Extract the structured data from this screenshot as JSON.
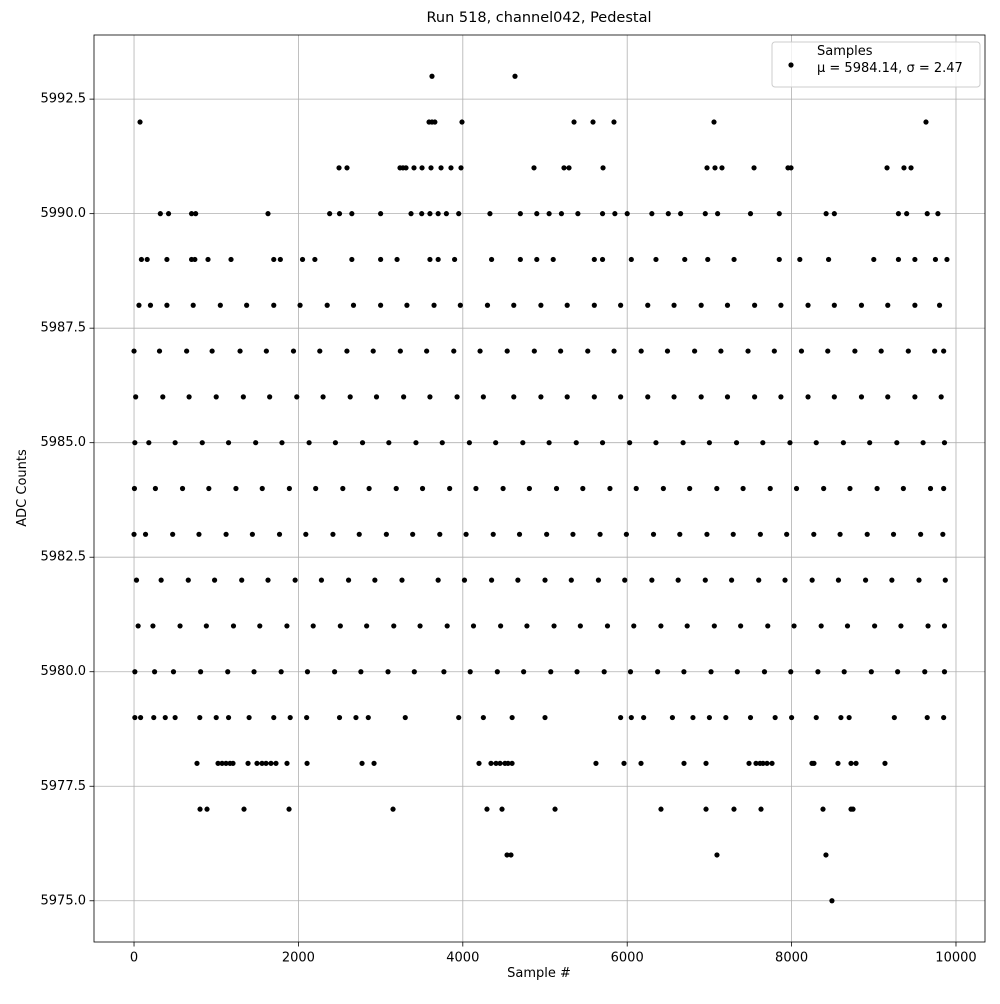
{
  "chart_data": {
    "type": "scatter",
    "title": "Run 518, channel042, Pedestal",
    "xlabel": "Sample #",
    "ylabel": "ADC Counts",
    "xlim": [
      -487,
      10353
    ],
    "ylim": [
      5974.1,
      5993.9
    ],
    "xticks": [
      0,
      2000,
      4000,
      6000,
      8000,
      10000
    ],
    "yticks": [
      {
        "value": 5975,
        "label": "5975.0"
      },
      5977.5,
      {
        "value": 5980,
        "label": "5980.0"
      },
      5982.5,
      {
        "value": 5985,
        "label": "5985.0"
      },
      5987.5,
      {
        "value": 5990,
        "label": "5990.0"
      },
      5992.5
    ],
    "grid": true,
    "legend": "upper right",
    "legend_stats": "μ = 5984.14, σ = 2.47",
    "series": [
      {
        "name": "Samples",
        "color": "#000000",
        "x": [
          3625,
          4635,
          73,
          3589,
          3625,
          3660,
          3990,
          5353,
          5584,
          5839,
          7056,
          9635,
          2494,
          2591,
          3236,
          3272,
          3309,
          3406,
          3504,
          3613,
          3735,
          3856,
          3978,
          4866,
          5231,
          5292,
          5706,
          6971,
          7068,
          7153,
          7543,
          7956,
          7993,
          9161,
          9367,
          9453,
          320,
          420,
          700,
          750,
          1630,
          2380,
          2500,
          2650,
          3000,
          3370,
          3500,
          3600,
          3700,
          3800,
          3950,
          4330,
          4700,
          4900,
          5050,
          5200,
          5400,
          5700,
          5850,
          6000,
          6300,
          6500,
          6650,
          6950,
          7100,
          7500,
          7850,
          8420,
          8520,
          9300,
          9400,
          9650,
          9780,
          90,
          160,
          400,
          700,
          740,
          900,
          1180,
          1700,
          1780,
          2050,
          2200,
          2650,
          3000,
          3200,
          3600,
          3700,
          3900,
          4350,
          4700,
          4900,
          5100,
          5600,
          5700,
          6050,
          6350,
          6700,
          6980,
          7300,
          7850,
          8100,
          8450,
          9000,
          9300,
          9500,
          9750,
          9890,
          60,
          200,
          400,
          720,
          1050,
          1370,
          1700,
          2020,
          2350,
          2670,
          3000,
          3320,
          3650,
          3970,
          4300,
          4620,
          4950,
          5270,
          5600,
          5920,
          6250,
          6570,
          6900,
          7220,
          7550,
          7870,
          8200,
          8520,
          8850,
          9170,
          9500,
          9800,
          0,
          310,
          640,
          950,
          1290,
          1610,
          1940,
          2260,
          2590,
          2910,
          3240,
          3560,
          3890,
          4210,
          4540,
          4870,
          5190,
          5520,
          5840,
          6170,
          6490,
          6820,
          7140,
          7470,
          7790,
          8120,
          8440,
          8770,
          9090,
          9420,
          9740,
          9850,
          20,
          350,
          670,
          1000,
          1330,
          1650,
          1980,
          2300,
          2630,
          2950,
          3280,
          3600,
          3930,
          4250,
          4620,
          4950,
          5270,
          5600,
          5920,
          6250,
          6570,
          6900,
          7220,
          7550,
          7870,
          8200,
          8520,
          8850,
          9170,
          9500,
          9820,
          10,
          180,
          500,
          830,
          1150,
          1480,
          1800,
          2130,
          2450,
          2780,
          3100,
          3430,
          3750,
          4080,
          4400,
          4730,
          5050,
          5380,
          5700,
          6030,
          6350,
          6680,
          7000,
          7330,
          7650,
          7980,
          8300,
          8630,
          8950,
          9280,
          9600,
          9860,
          5,
          260,
          590,
          910,
          1240,
          1560,
          1890,
          2210,
          2540,
          2860,
          3190,
          3510,
          3840,
          4160,
          4490,
          4810,
          5140,
          5460,
          5790,
          6110,
          6440,
          6760,
          7090,
          7410,
          7740,
          8060,
          8390,
          8710,
          9040,
          9360,
          9690,
          9850,
          0,
          140,
          470,
          790,
          1120,
          1440,
          1770,
          2090,
          2420,
          2740,
          3070,
          3390,
          3720,
          4040,
          4370,
          4690,
          5020,
          5340,
          5670,
          5990,
          6320,
          6640,
          6970,
          7290,
          7620,
          7940,
          8270,
          8590,
          8920,
          9240,
          9570,
          9840,
          30,
          330,
          660,
          980,
          1310,
          1630,
          1960,
          2280,
          2610,
          2930,
          3260,
          3700,
          4020,
          4350,
          4670,
          5000,
          5320,
          5650,
          5970,
          6300,
          6620,
          6950,
          7270,
          7600,
          7920,
          8250,
          8570,
          8900,
          9220,
          9550,
          9870,
          50,
          230,
          560,
          880,
          1210,
          1530,
          1860,
          2180,
          2510,
          2830,
          3160,
          3480,
          3810,
          4130,
          4460,
          4780,
          5110,
          5430,
          5760,
          6080,
          6410,
          6730,
          7060,
          7380,
          7710,
          8030,
          8360,
          8680,
          9010,
          9330,
          9660,
          9860,
          10,
          250,
          480,
          810,
          1140,
          1460,
          1790,
          2110,
          2440,
          2760,
          3090,
          3410,
          3770,
          4090,
          4420,
          4740,
          5070,
          5390,
          5720,
          6040,
          6370,
          6690,
          7020,
          7340,
          7670,
          7990,
          8320,
          8640,
          8970,
          9290,
          9620,
          9860,
          10,
          80,
          240,
          380,
          500,
          800,
          1000,
          1150,
          1400,
          1700,
          1900,
          2100,
          2500,
          2700,
          2850,
          3300,
          3950,
          4250,
          4600,
          5000,
          5920,
          6050,
          6200,
          6550,
          6800,
          7000,
          7200,
          7500,
          7800,
          8000,
          8300,
          8600,
          8700,
          9250,
          9650,
          9850,
          766,
          1022,
          1071,
          1119,
          1168,
          1204,
          1387,
          1496,
          1557,
          1606,
          1666,
          1727,
          1861,
          2105,
          2774,
          2920,
          4197,
          4343,
          4404,
          4453,
          4513,
          4550,
          4599,
          5620,
          5961,
          6168,
          6691,
          6959,
          7482,
          7567,
          7616,
          7652,
          7701,
          7762,
          8248,
          8272,
          8564,
          8723,
          8784,
          9136,
          803,
          888,
          1338,
          1886,
          3151,
          4294,
          4477,
          5122,
          6411,
          6959,
          7299,
          7628,
          8382,
          8723,
          8747,
          4538,
          4586,
          7092,
          8418,
          8491
        ],
        "y": [
          5993,
          5993,
          5992,
          5992,
          5992,
          5992,
          5992,
          5992,
          5992,
          5992,
          5992,
          5992,
          5991,
          5991,
          5991,
          5991,
          5991,
          5991,
          5991,
          5991,
          5991,
          5991,
          5991,
          5991,
          5991,
          5991,
          5991,
          5991,
          5991,
          5991,
          5991,
          5991,
          5991,
          5991,
          5991,
          5991,
          5990,
          5990,
          5990,
          5990,
          5990,
          5990,
          5990,
          5990,
          5990,
          5990,
          5990,
          5990,
          5990,
          5990,
          5990,
          5990,
          5990,
          5990,
          5990,
          5990,
          5990,
          5990,
          5990,
          5990,
          5990,
          5990,
          5990,
          5990,
          5990,
          5990,
          5990,
          5990,
          5990,
          5990,
          5990,
          5990,
          5990,
          5989,
          5989,
          5989,
          5989,
          5989,
          5989,
          5989,
          5989,
          5989,
          5989,
          5989,
          5989,
          5989,
          5989,
          5989,
          5989,
          5989,
          5989,
          5989,
          5989,
          5989,
          5989,
          5989,
          5989,
          5989,
          5989,
          5989,
          5989,
          5989,
          5989,
          5989,
          5989,
          5989,
          5989,
          5989,
          5989,
          5988,
          5988,
          5988,
          5988,
          5988,
          5988,
          5988,
          5988,
          5988,
          5988,
          5988,
          5988,
          5988,
          5988,
          5988,
          5988,
          5988,
          5988,
          5988,
          5988,
          5988,
          5988,
          5988,
          5988,
          5988,
          5988,
          5988,
          5988,
          5988,
          5988,
          5988,
          5988,
          5987,
          5987,
          5987,
          5987,
          5987,
          5987,
          5987,
          5987,
          5987,
          5987,
          5987,
          5987,
          5987,
          5987,
          5987,
          5987,
          5987,
          5987,
          5987,
          5987,
          5987,
          5987,
          5987,
          5987,
          5987,
          5987,
          5987,
          5987,
          5987,
          5987,
          5987,
          5987,
          5986,
          5986,
          5986,
          5986,
          5986,
          5986,
          5986,
          5986,
          5986,
          5986,
          5986,
          5986,
          5986,
          5986,
          5986,
          5986,
          5986,
          5986,
          5986,
          5986,
          5986,
          5986,
          5986,
          5986,
          5986,
          5986,
          5986,
          5986,
          5986,
          5986,
          5986,
          5985,
          5985,
          5985,
          5985,
          5985,
          5985,
          5985,
          5985,
          5985,
          5985,
          5985,
          5985,
          5985,
          5985,
          5985,
          5985,
          5985,
          5985,
          5985,
          5985,
          5985,
          5985,
          5985,
          5985,
          5985,
          5985,
          5985,
          5985,
          5985,
          5985,
          5985,
          5985,
          5984,
          5984,
          5984,
          5984,
          5984,
          5984,
          5984,
          5984,
          5984,
          5984,
          5984,
          5984,
          5984,
          5984,
          5984,
          5984,
          5984,
          5984,
          5984,
          5984,
          5984,
          5984,
          5984,
          5984,
          5984,
          5984,
          5984,
          5984,
          5984,
          5984,
          5984,
          5984,
          5983,
          5983,
          5983,
          5983,
          5983,
          5983,
          5983,
          5983,
          5983,
          5983,
          5983,
          5983,
          5983,
          5983,
          5983,
          5983,
          5983,
          5983,
          5983,
          5983,
          5983,
          5983,
          5983,
          5983,
          5983,
          5983,
          5983,
          5983,
          5983,
          5983,
          5983,
          5983,
          5982,
          5982,
          5982,
          5982,
          5982,
          5982,
          5982,
          5982,
          5982,
          5982,
          5982,
          5982,
          5982,
          5982,
          5982,
          5982,
          5982,
          5982,
          5982,
          5982,
          5982,
          5982,
          5982,
          5982,
          5982,
          5982,
          5982,
          5982,
          5982,
          5982,
          5982,
          5981,
          5981,
          5981,
          5981,
          5981,
          5981,
          5981,
          5981,
          5981,
          5981,
          5981,
          5981,
          5981,
          5981,
          5981,
          5981,
          5981,
          5981,
          5981,
          5981,
          5981,
          5981,
          5981,
          5981,
          5981,
          5981,
          5981,
          5981,
          5981,
          5981,
          5981,
          5981,
          5980,
          5980,
          5980,
          5980,
          5980,
          5980,
          5980,
          5980,
          5980,
          5980,
          5980,
          5980,
          5980,
          5980,
          5980,
          5980,
          5980,
          5980,
          5980,
          5980,
          5980,
          5980,
          5980,
          5980,
          5980,
          5980,
          5980,
          5980,
          5980,
          5980,
          5980,
          5980,
          5979,
          5979,
          5979,
          5979,
          5979,
          5979,
          5979,
          5979,
          5979,
          5979,
          5979,
          5979,
          5979,
          5979,
          5979,
          5979,
          5979,
          5979,
          5979,
          5979,
          5979,
          5979,
          5979,
          5979,
          5979,
          5979,
          5979,
          5979,
          5979,
          5979,
          5979,
          5979,
          5979,
          5979,
          5979,
          5979,
          5978,
          5978,
          5978,
          5978,
          5978,
          5978,
          5978,
          5978,
          5978,
          5978,
          5978,
          5978,
          5978,
          5978,
          5978,
          5978,
          5978,
          5978,
          5978,
          5978,
          5978,
          5978,
          5978,
          5978,
          5978,
          5978,
          5978,
          5978,
          5978,
          5978,
          5978,
          5978,
          5978,
          5978,
          5978,
          5978,
          5978,
          5978,
          5978,
          5978,
          5977,
          5977,
          5977,
          5977,
          5977,
          5977,
          5977,
          5977,
          5977,
          5977,
          5977,
          5977,
          5977,
          5977,
          5977,
          5976,
          5976,
          5976,
          5976,
          5975
        ]
      }
    ]
  }
}
